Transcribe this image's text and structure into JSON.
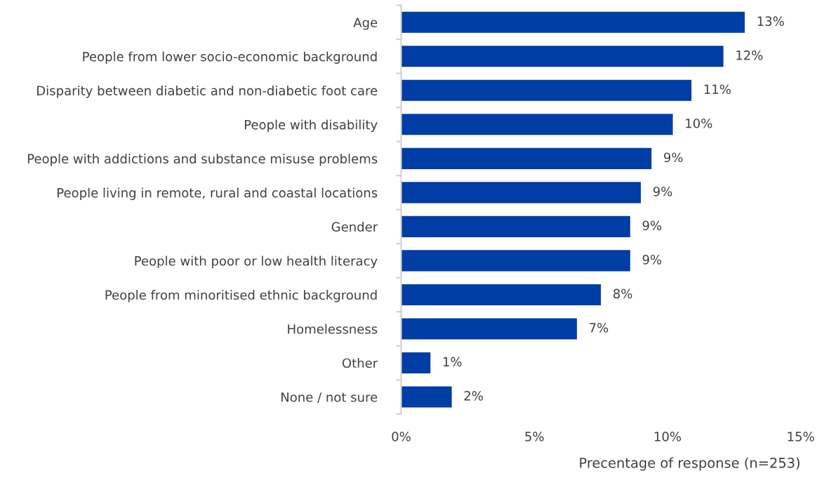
{
  "chart_data": {
    "type": "bar",
    "orientation": "horizontal",
    "xlabel": "Precentage of response (n=253)",
    "categories": [
      "Age",
      "People from lower socio-economic background",
      "Disparity between diabetic and non-diabetic foot care",
      "People with disability",
      "People with addictions and substance misuse problems",
      "People living in remote, rural and coastal locations",
      "Gender",
      "People with poor or low health literacy",
      "People from minoritised ethnic background",
      "Homelessness",
      "Other",
      "None / not sure"
    ],
    "values": [
      12.9,
      12.1,
      10.9,
      10.2,
      9.4,
      9.0,
      8.6,
      8.6,
      7.5,
      6.6,
      1.1,
      1.9
    ],
    "value_labels": [
      "13%",
      "12%",
      "11%",
      "10%",
      "9%",
      "9%",
      "9%",
      "9%",
      "8%",
      "7%",
      "1%",
      "2%"
    ],
    "color": "#003da5",
    "xlim": [
      0,
      15
    ],
    "xticks": [
      {
        "value": 0,
        "label": "0%"
      },
      {
        "value": 5,
        "label": "5%"
      },
      {
        "value": 10,
        "label": "10%"
      },
      {
        "value": 15,
        "label": "15%"
      }
    ],
    "grid": false,
    "legend": false
  }
}
